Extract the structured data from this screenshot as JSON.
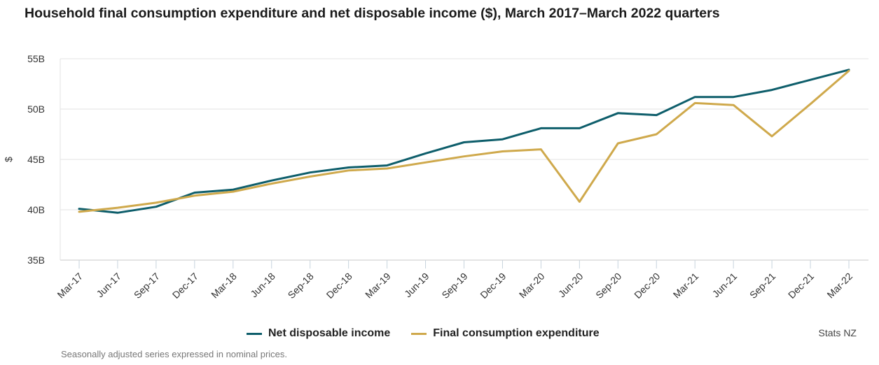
{
  "title": "Household final consumption expenditure and net disposable income ($), March 2017–March 2022 quarters",
  "source": "Stats NZ",
  "footnote": "Seasonally adjusted series expressed in nominal prices.",
  "chart_data": {
    "type": "line",
    "title": "Household final consumption expenditure and net disposable income ($), March 2017–March 2022 quarters",
    "ylabel": "$",
    "xlabel": "",
    "ylim": [
      35,
      55
    ],
    "y_ticks": [
      35,
      40,
      45,
      50,
      55
    ],
    "y_tick_labels": [
      "35B",
      "40B",
      "45B",
      "50B",
      "55B"
    ],
    "grid": "horizontal",
    "legend_position": "bottom",
    "categories": [
      "Mar-17",
      "Jun-17",
      "Sep-17",
      "Dec-17",
      "Mar-18",
      "Jun-18",
      "Sep-18",
      "Dec-18",
      "Mar-19",
      "Jun-19",
      "Sep-19",
      "Dec-19",
      "Mar-20",
      "Jun-20",
      "Sep-20",
      "Dec-20",
      "Mar-21",
      "Jun-21",
      "Sep-21",
      "Dec-21",
      "Mar-22"
    ],
    "series": [
      {
        "name": "Net disposable income",
        "color": "#0e5e6b",
        "values": [
          40.1,
          39.7,
          40.3,
          41.7,
          42.0,
          42.9,
          43.7,
          44.2,
          44.4,
          45.6,
          46.7,
          47.0,
          48.1,
          48.1,
          49.6,
          49.4,
          51.2,
          51.2,
          51.9,
          52.9,
          53.9
        ]
      },
      {
        "name": "Final consumption expenditure",
        "color": "#cfa94c",
        "values": [
          39.8,
          40.2,
          40.7,
          41.4,
          41.8,
          42.6,
          43.3,
          43.9,
          44.1,
          44.7,
          45.3,
          45.8,
          46.0,
          40.8,
          46.6,
          47.5,
          50.6,
          50.4,
          47.3,
          50.5,
          53.8
        ]
      }
    ]
  }
}
